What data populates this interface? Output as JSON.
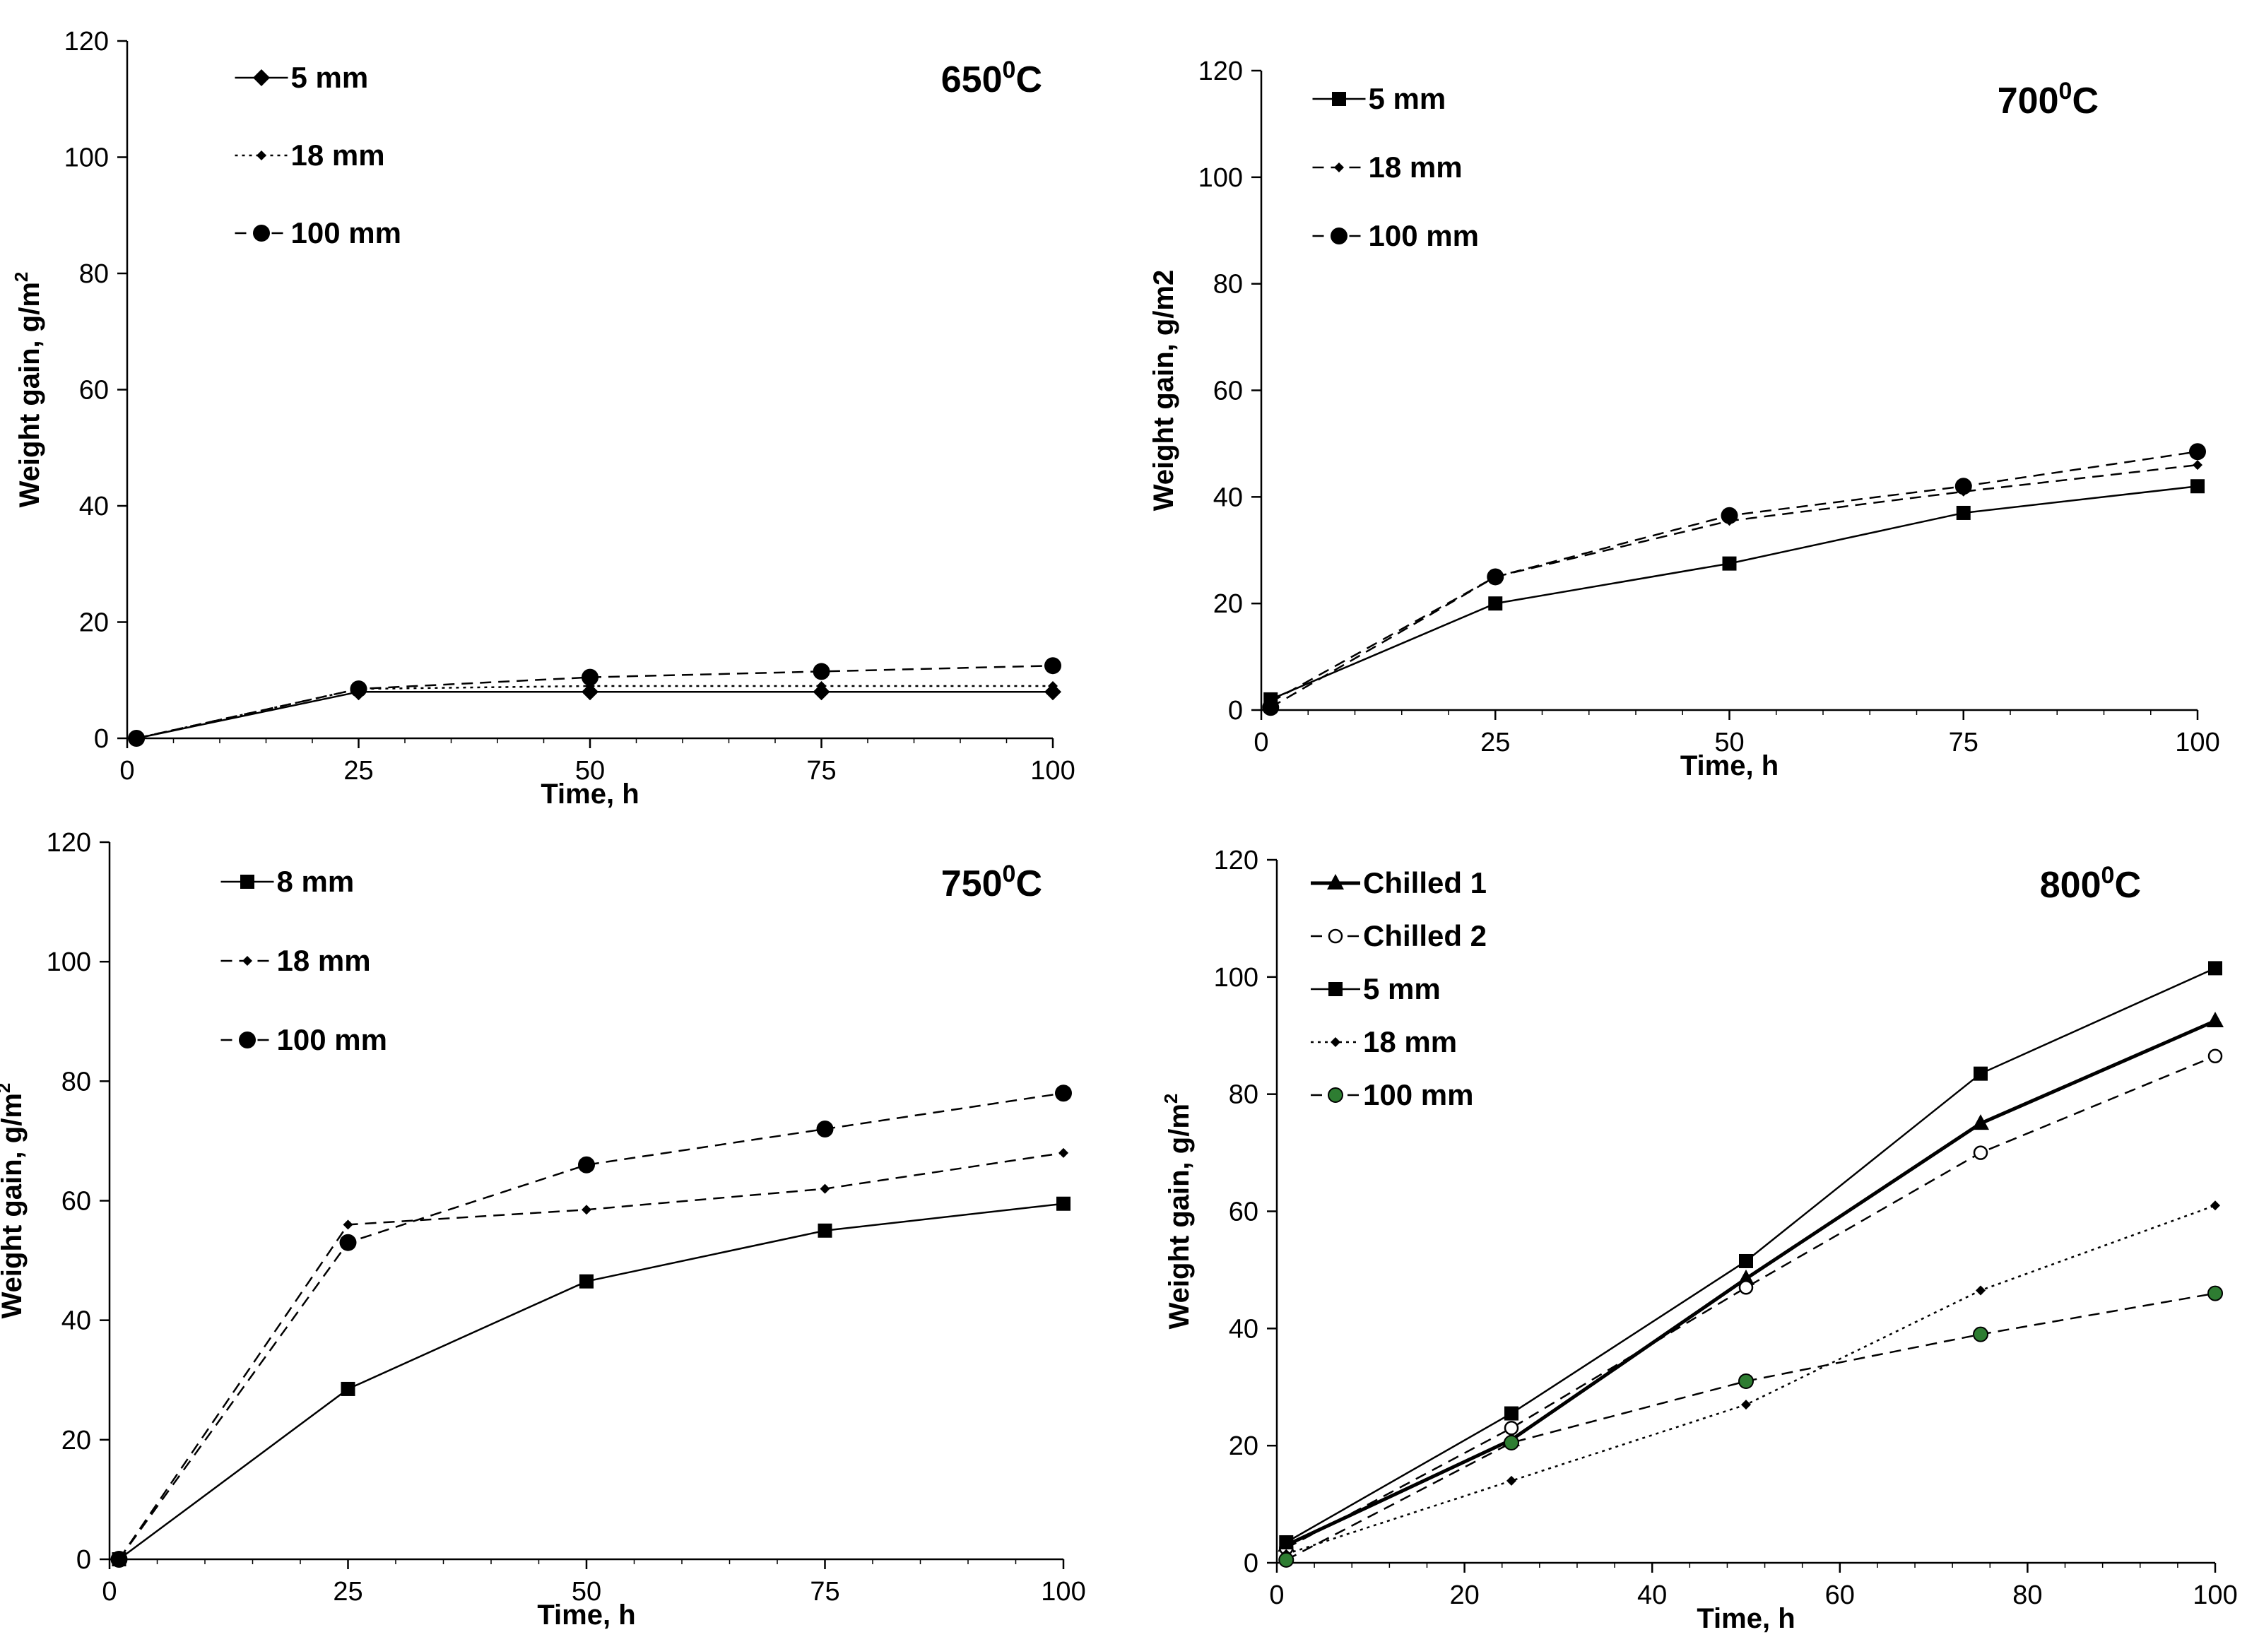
{
  "chart_data": [
    {
      "type": "line",
      "title": "650",
      "title_sup": "0",
      "title_suffix": "C",
      "xlabel": "Time, h",
      "ylabel": "Weight gain, g/m",
      "ylabel_sup": "2",
      "xlim": [
        0,
        100
      ],
      "ylim": [
        0,
        120
      ],
      "xticks": [
        0,
        25,
        50,
        75,
        100
      ],
      "yticks": [
        0,
        20,
        40,
        60,
        80,
        100,
        120
      ],
      "legend_position": "top-left",
      "series": [
        {
          "name": "5 mm",
          "marker": "diamond",
          "dash": "solid",
          "color": "#000000",
          "x": [
            1,
            25,
            50,
            75,
            100
          ],
          "y": [
            0,
            8,
            8,
            8,
            8
          ]
        },
        {
          "name": "18 mm",
          "marker": "smalldiamond",
          "dash": "dotted",
          "color": "#000000",
          "x": [
            1,
            25,
            50,
            75,
            100
          ],
          "y": [
            0,
            8.5,
            9,
            9,
            9
          ]
        },
        {
          "name": "100 mm",
          "marker": "circle",
          "dash": "dashed",
          "color": "#000000",
          "x": [
            1,
            25,
            50,
            75,
            100
          ],
          "y": [
            0,
            8.5,
            10.5,
            11.5,
            12.5
          ]
        }
      ]
    },
    {
      "type": "line",
      "title": "700",
      "title_sup": "0",
      "title_suffix": "C",
      "xlabel": "Time, h",
      "ylabel": "Weight gain, g/m2",
      "ylabel_sup": "",
      "xlim": [
        0,
        100
      ],
      "ylim": [
        0,
        120
      ],
      "xticks": [
        0,
        25,
        50,
        75,
        100
      ],
      "yticks": [
        0,
        20,
        40,
        60,
        80,
        100,
        120
      ],
      "legend_position": "top-left",
      "series": [
        {
          "name": "5 mm",
          "marker": "square",
          "dash": "solid",
          "color": "#000000",
          "x": [
            1,
            25,
            50,
            75,
            100
          ],
          "y": [
            2,
            20,
            27.5,
            37,
            42
          ]
        },
        {
          "name": "18 mm",
          "marker": "smalldiamond",
          "dash": "dashed",
          "color": "#000000",
          "x": [
            1,
            25,
            50,
            75,
            100
          ],
          "y": [
            1.5,
            25,
            35.5,
            41,
            46
          ]
        },
        {
          "name": "100 mm",
          "marker": "circle",
          "dash": "dashed",
          "color": "#000000",
          "x": [
            1,
            25,
            50,
            75,
            100
          ],
          "y": [
            0.5,
            25,
            36.5,
            42,
            48.5
          ]
        }
      ]
    },
    {
      "type": "line",
      "title": "750",
      "title_sup": "0",
      "title_suffix": "C",
      "xlabel": "Time, h",
      "ylabel": "Weight gain, g/m",
      "ylabel_sup": "2",
      "xlim": [
        0,
        100
      ],
      "ylim": [
        0,
        120
      ],
      "xticks": [
        0,
        25,
        50,
        75,
        100
      ],
      "yticks": [
        0,
        20,
        40,
        60,
        80,
        100,
        120
      ],
      "legend_position": "top-left",
      "series": [
        {
          "name": "8 mm",
          "marker": "square",
          "dash": "solid",
          "color": "#000000",
          "x": [
            1,
            25,
            50,
            75,
            100
          ],
          "y": [
            0,
            28.5,
            46.5,
            55,
            59.5
          ]
        },
        {
          "name": "18 mm",
          "marker": "smalldiamond",
          "dash": "dashed",
          "color": "#000000",
          "x": [
            1,
            25,
            50,
            75,
            100
          ],
          "y": [
            0,
            56,
            58.5,
            62,
            68
          ]
        },
        {
          "name": "100 mm",
          "marker": "circle",
          "dash": "dashed",
          "color": "#000000",
          "x": [
            1,
            25,
            50,
            75,
            100
          ],
          "y": [
            0,
            53,
            66,
            72,
            78
          ]
        }
      ]
    },
    {
      "type": "line",
      "title": "800",
      "title_sup": "0",
      "title_suffix": "C",
      "xlabel": "Time, h",
      "ylabel": "Weight gain, g/m",
      "ylabel_sup": "2",
      "xlim": [
        0,
        100
      ],
      "ylim": [
        0,
        120
      ],
      "xticks": [
        0,
        20,
        40,
        60,
        80,
        100
      ],
      "yticks": [
        0,
        20,
        40,
        60,
        80,
        100,
        120
      ],
      "legend_position": "top-left",
      "series": [
        {
          "name": "Chilled 1",
          "marker": "triangle",
          "dash": "solid-thick",
          "color": "#000000",
          "x": [
            1,
            25,
            50,
            75,
            100
          ],
          "y": [
            3,
            21,
            48.5,
            75,
            92.5
          ]
        },
        {
          "name": "Chilled 2",
          "marker": "opencircle",
          "dash": "dashed",
          "color": "#000000",
          "x": [
            1,
            25,
            50,
            75,
            100
          ],
          "y": [
            2.5,
            23,
            47,
            70,
            86.5
          ]
        },
        {
          "name": "5 mm",
          "marker": "square",
          "dash": "solid",
          "color": "#000000",
          "x": [
            1,
            25,
            50,
            75,
            100
          ],
          "y": [
            3.5,
            25.5,
            51.5,
            83.5,
            101.5
          ]
        },
        {
          "name": "18 mm",
          "marker": "smalldiamond",
          "dash": "dotted",
          "color": "#000000",
          "x": [
            1,
            25,
            50,
            75,
            100
          ],
          "y": [
            1.5,
            14,
            27,
            46.5,
            61
          ]
        },
        {
          "name": "100 mm",
          "marker": "greencircle",
          "dash": "dashed",
          "color": "#2e7d32",
          "x": [
            1,
            25,
            50,
            75,
            100
          ],
          "y": [
            0.5,
            20.5,
            31,
            39,
            46
          ]
        }
      ]
    }
  ]
}
